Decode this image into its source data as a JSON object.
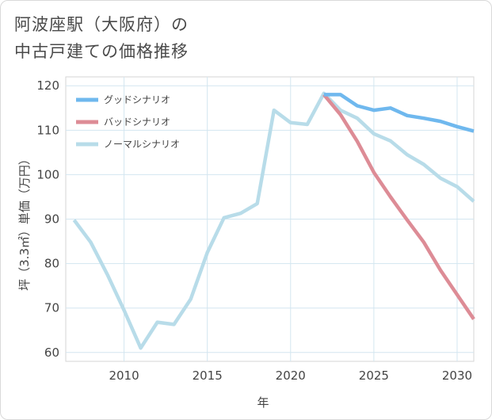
{
  "title_lines": [
    "阿波座駅（大阪府）の",
    "中古戸建ての価格推移"
  ],
  "chart_data": {
    "type": "line",
    "title": "阿波座駅（大阪府）の中古戸建ての価格推移",
    "xlabel": "年",
    "ylabel": "坪（3.3㎡）単価（万円）",
    "xlim": [
      2006.5,
      2031
    ],
    "ylim": [
      58,
      122
    ],
    "xticks": [
      2010,
      2015,
      2020,
      2025,
      2030
    ],
    "yticks": [
      60,
      70,
      80,
      90,
      100,
      110,
      120
    ],
    "grid": true,
    "legend_position": "top-left",
    "series": [
      {
        "name": "グッドシナリオ",
        "color": "#6fb8ee",
        "x": [
          2022,
          2023,
          2024,
          2025,
          2026,
          2027,
          2028,
          2029,
          2030,
          2031
        ],
        "values": [
          118,
          118,
          115.5,
          114.5,
          115,
          113.3,
          112.7,
          112,
          110.8,
          109.8
        ]
      },
      {
        "name": "バッドシナリオ",
        "color": "#dd8c96",
        "x": [
          2022,
          2023,
          2024,
          2025,
          2026,
          2027,
          2028,
          2029,
          2030,
          2031
        ],
        "values": [
          118,
          113.5,
          107.5,
          100.5,
          95,
          89.8,
          84.8,
          78.5,
          73,
          67.5
        ]
      },
      {
        "name": "ノーマルシナリオ",
        "color": "#b8dce9",
        "x": [
          2007,
          2008,
          2009,
          2010,
          2011,
          2012,
          2013,
          2014,
          2015,
          2016,
          2017,
          2018,
          2019,
          2020,
          2021,
          2022,
          2023,
          2024,
          2025,
          2026,
          2027,
          2028,
          2029,
          2030,
          2031
        ],
        "values": [
          89.8,
          84.8,
          77.5,
          69.5,
          61,
          66.8,
          66.3,
          72,
          82.5,
          90.3,
          91.3,
          93.5,
          114.5,
          111.7,
          111.3,
          118.3,
          114.5,
          112.7,
          109.2,
          107.6,
          104.5,
          102.3,
          99.2,
          97.3,
          94
        ]
      }
    ]
  }
}
